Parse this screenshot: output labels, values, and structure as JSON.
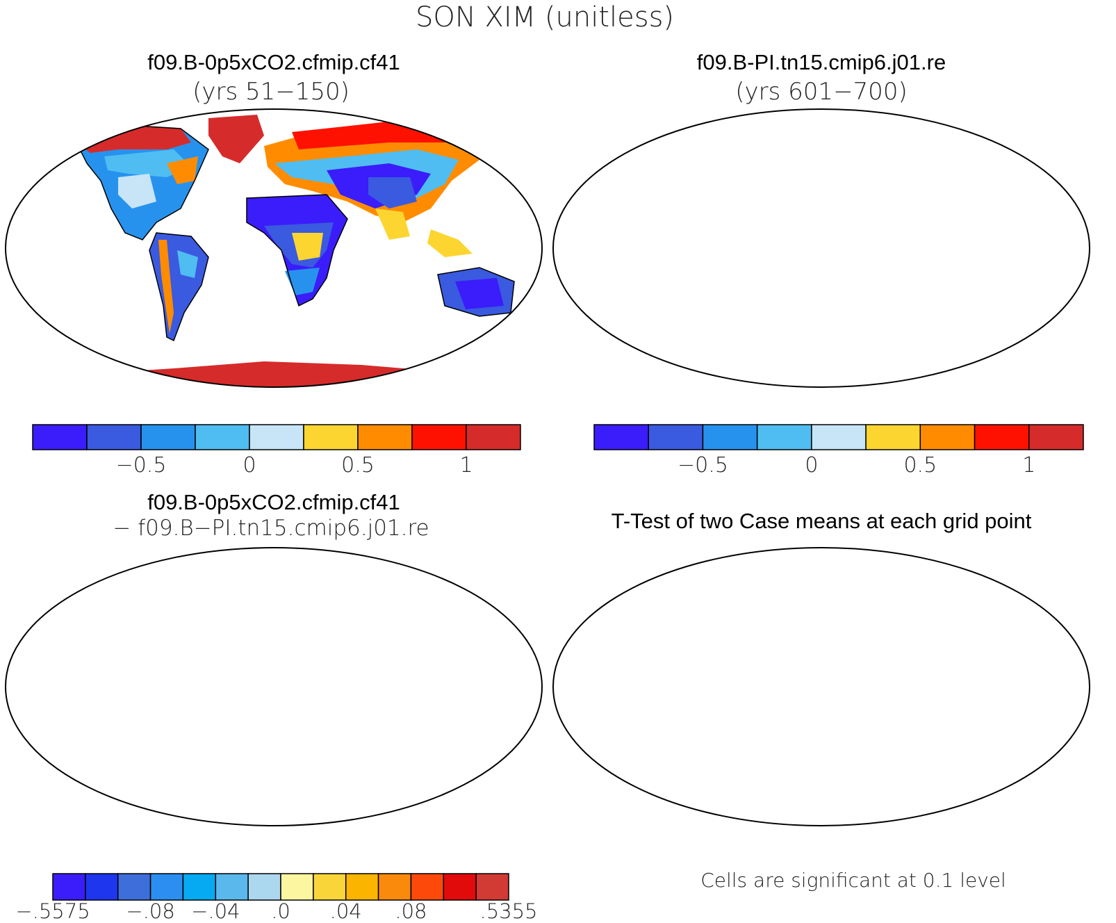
{
  "figure": {
    "main_title": "SON XIM (unitless)"
  },
  "panels": {
    "case1": {
      "title": "f09.B-0p5xCO2.cfmip.cf41",
      "subtitle": "(yrs 51−150)"
    },
    "case2": {
      "title": "f09.B-PI.tn15.cmip6.j01.re",
      "subtitle": "(yrs 601−700)"
    },
    "diff": {
      "title": "f09.B-0p5xCO2.cfmip.cf41",
      "subtitle": "− f09.B−PI.tn15.cmip6.j01.re"
    },
    "ttest": {
      "title": "T-Test of two Case means at each grid point",
      "footnote": "Cells are significant at 0.1 level",
      "significant_color": "#ff0000"
    }
  },
  "colorbars": {
    "case": {
      "colors": [
        "#3a1dfa",
        "#3a5ae0",
        "#2792ee",
        "#4fbdf2",
        "#c7e5f6",
        "#fcd531",
        "#ff8c00",
        "#ff1100",
        "#d62b2b"
      ],
      "tick_labels": [
        "−0.5",
        "0",
        "0.5",
        "1"
      ]
    },
    "diff": {
      "colors": [
        "#3a1dfa",
        "#1e36ee",
        "#3e6ed9",
        "#2b8ef0",
        "#05aaf2",
        "#5ab8ec",
        "#acd8ef",
        "#fdf6a0",
        "#fad53a",
        "#fbb400",
        "#fa8a0c",
        "#fd4a0b",
        "#e20b0b",
        "#d23a34"
      ],
      "tick_labels": [
        "−.5575",
        "−.08",
        "−.04",
        ".0",
        ".04",
        ".08",
        ".5355"
      ]
    }
  },
  "colors": {
    "antarctica_case": "#d62b2b",
    "antarctica_diff": "#fdf6a0",
    "ocean": "#ffffff",
    "coastline": "#000000"
  }
}
